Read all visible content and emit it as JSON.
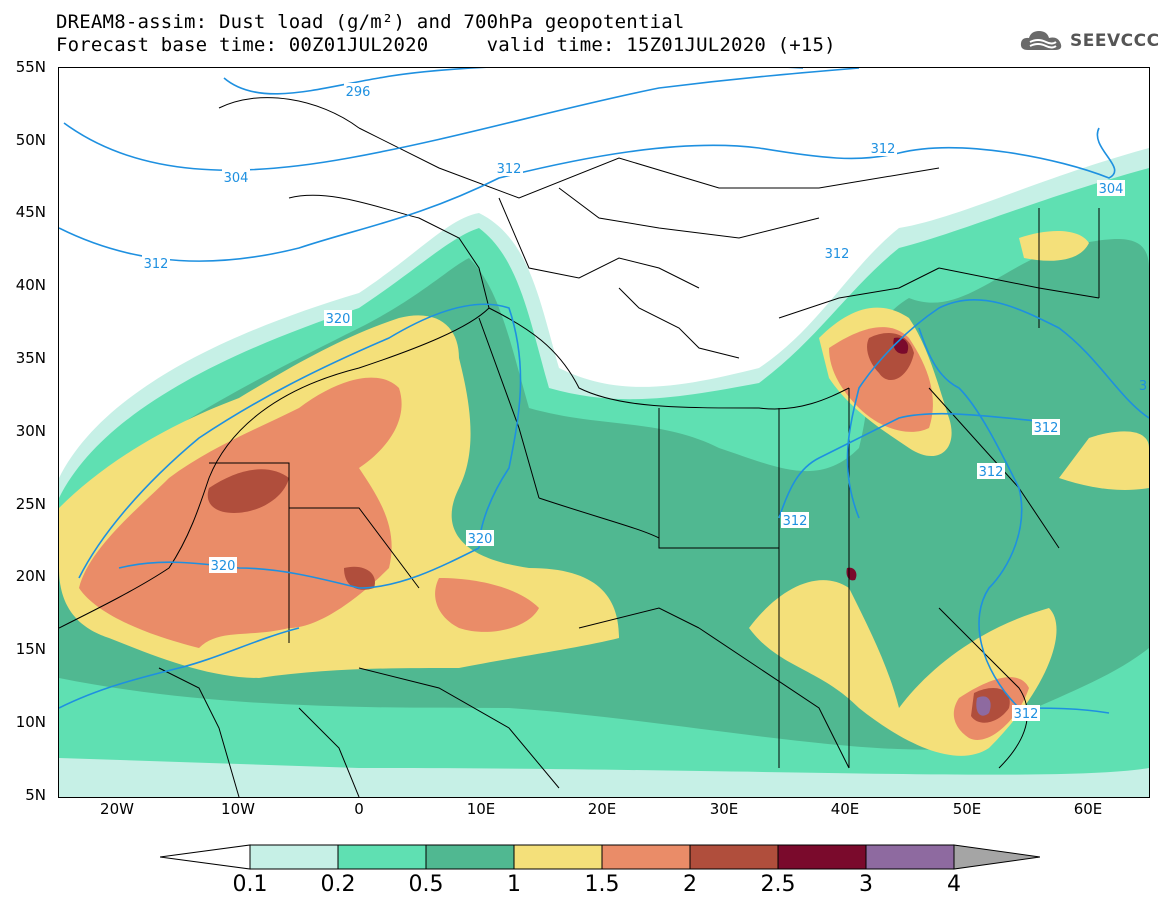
{
  "header": {
    "title_line1": "DREAM8-assim: Dust load (g/m²) and 700hPa geopotential",
    "title_line2": "Forecast base time: 00Z01JUL2020     valid time: 15Z01JUL2020 (+15)"
  },
  "logo": {
    "text": "SEEVCCC",
    "icon": "cloud-logo-icon"
  },
  "map": {
    "lat_ticks": [
      "55N",
      "50N",
      "45N",
      "40N",
      "35N",
      "30N",
      "25N",
      "20N",
      "15N",
      "10N",
      "5N"
    ],
    "lon_ticks": [
      "20W",
      "10W",
      "0",
      "10E",
      "20E",
      "30E",
      "40E",
      "50E",
      "60E"
    ],
    "contour_labels": [
      "296",
      "304",
      "312",
      "312",
      "312",
      "312",
      "320",
      "320",
      "320",
      "312",
      "312",
      "312",
      "304",
      "312",
      "3"
    ]
  },
  "colorbar": {
    "labels": [
      "0.1",
      "0.2",
      "0.5",
      "1",
      "1.5",
      "2",
      "2.5",
      "3",
      "4"
    ],
    "colors": [
      "#c6f0e6",
      "#5fe0b2",
      "#50b891",
      "#f4e07a",
      "#ea8c68",
      "#b04e3c",
      "#7a0a2c",
      "#8e6aa0",
      "#a5a5a5"
    ]
  },
  "colors": {
    "contour": "#1e90e0",
    "border": "#000000"
  }
}
